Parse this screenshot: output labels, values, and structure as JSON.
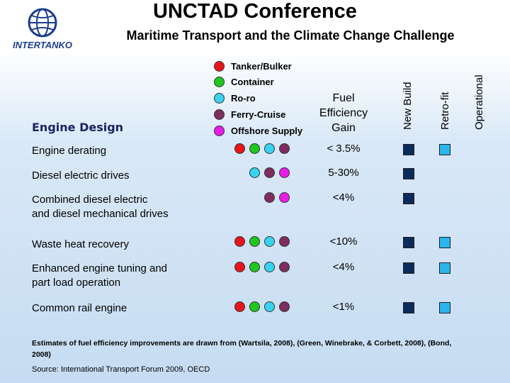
{
  "header": {
    "title": "UNCTAD Conference",
    "subtitle": "Maritime Transport and the Climate Change Challenge",
    "logo_text": "INTERTANKO"
  },
  "legend": [
    {
      "label": "Tanker/Bulker",
      "color": "#e8141c"
    },
    {
      "label": "Container",
      "color": "#1ec81e"
    },
    {
      "label": "Ro-ro",
      "color": "#39d2f0"
    },
    {
      "label": "Ferry-Cruise",
      "color": "#7e2d5e"
    },
    {
      "label": "Offshore Supply",
      "color": "#e81ce8"
    }
  ],
  "section_title": "Engine Design",
  "gain_header": [
    "Fuel",
    "Efficiency",
    "Gain"
  ],
  "columns": {
    "new_build": "New Build",
    "retro_fit": "Retro-fit",
    "operational": "Operational"
  },
  "rows": [
    {
      "label": [
        "Engine derating"
      ],
      "ships": [
        "Tanker/Bulker",
        "Container",
        "Ro-ro",
        "Ferry-Cruise"
      ],
      "gain": "< 3.5%",
      "new_build": true,
      "retro_fit": true
    },
    {
      "label": [
        "Diesel electric drives"
      ],
      "ships": [
        "Ro-ro",
        "Ferry-Cruise",
        "Offshore Supply"
      ],
      "gain": "5-30%",
      "new_build": true,
      "retro_fit": false
    },
    {
      "label": [
        "Combined diesel electric",
        "and diesel mechanical drives"
      ],
      "ships": [
        "Ferry-Cruise",
        "Offshore Supply"
      ],
      "gain": "<4%",
      "new_build": true,
      "retro_fit": false
    },
    {
      "label": [
        "Waste heat recovery"
      ],
      "ships": [
        "Tanker/Bulker",
        "Container",
        "Ro-ro",
        "Ferry-Cruise"
      ],
      "gain": "<10%",
      "new_build": true,
      "retro_fit": true
    },
    {
      "label": [
        "Enhanced engine tuning and",
        "part load operation"
      ],
      "ships": [
        "Tanker/Bulker",
        "Container",
        "Ro-ro",
        "Ferry-Cruise"
      ],
      "gain": "<4%",
      "new_build": true,
      "retro_fit": true
    },
    {
      "label": [
        "Common rail engine"
      ],
      "ships": [
        "Tanker/Bulker",
        "Container",
        "Ro-ro",
        "Ferry-Cruise"
      ],
      "gain": "<1%",
      "new_build": true,
      "retro_fit": true
    }
  ],
  "footnote": "Estimates of fuel efficiency improvements are drawn from (Wartsila, 2008), (Green, Winebrake, & Corbett, 2008), (Bond, 2008)",
  "source": "Source: International Transport Forum 2009, OECD"
}
